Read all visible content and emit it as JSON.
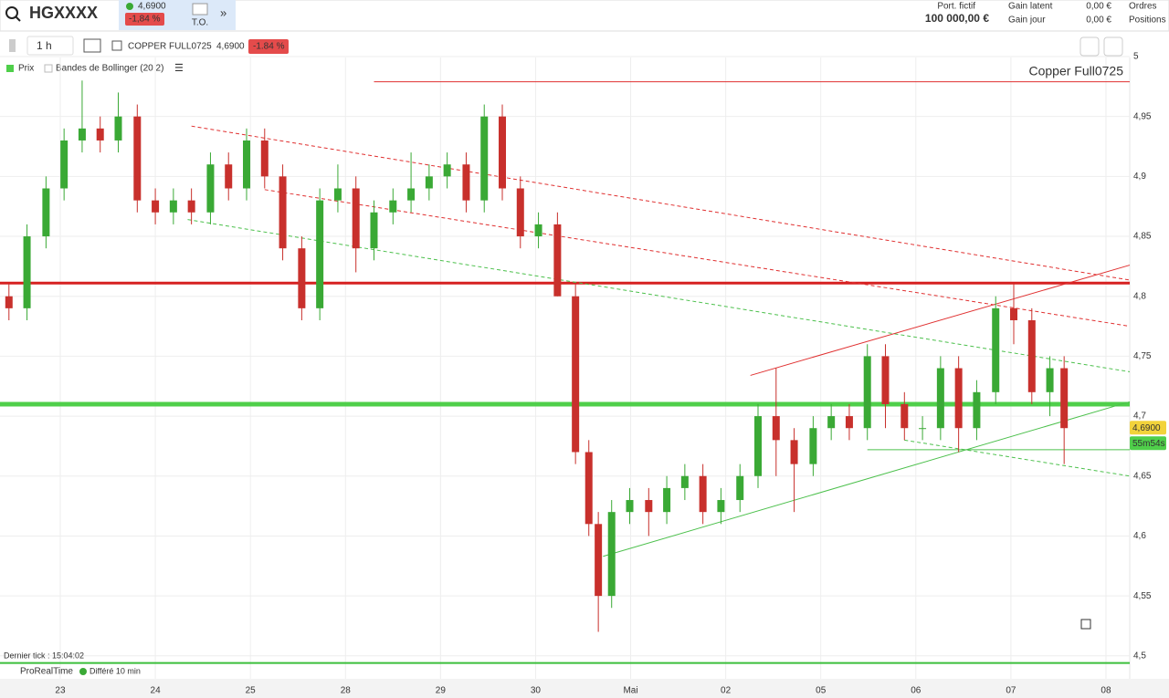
{
  "header": {
    "symbol": "HGXXXX",
    "price": "4,6900",
    "change": "-1,84 %",
    "to": "T.O.",
    "portfolio_label": "Port. fictif",
    "portfolio_value": "100 000,00 €",
    "gain_latent_label": "Gain latent",
    "gain_latent_value": "0,00 €",
    "gain_jour_label": "Gain jour",
    "gain_jour_value": "0,00 €",
    "orders": "Ordres",
    "positions": "Positions"
  },
  "toolbar": {
    "interval": "1 h",
    "instrument": "COPPER FULL0725",
    "price": "4,6900",
    "change": "-1.84 %"
  },
  "legend": {
    "items": [
      "Prix",
      "Bandes de Bollinger (20 2)"
    ]
  },
  "footer": {
    "last_tick": "Dernier tick : 15:04:02",
    "brand": "ProRealTime",
    "delay": "Différé 10 min"
  },
  "chart_data": {
    "type": "candlestick",
    "watermark": "Copper Full0725",
    "up_color": "#3aa935",
    "down_color": "#c8302c",
    "grid": true,
    "x": [
      -0.54,
      -0.35,
      -0.15,
      0.04,
      0.23,
      0.42,
      0.61,
      0.81,
      1.0,
      1.19,
      1.38,
      1.58,
      1.77,
      1.96,
      2.15,
      2.34,
      2.54,
      2.73,
      2.92,
      3.11,
      3.3,
      3.5,
      3.69,
      3.88,
      4.07,
      4.27,
      4.46,
      4.65,
      4.84,
      5.03,
      5.23,
      5.42,
      5.56,
      5.66,
      5.8,
      5.99,
      6.19,
      6.38,
      6.57,
      6.76,
      6.95,
      7.15,
      7.34,
      7.53,
      7.72,
      7.92,
      8.11,
      8.3,
      8.49,
      8.68,
      8.88,
      9.07,
      9.26,
      9.45,
      9.64,
      9.84,
      10.03,
      10.22,
      10.41,
      10.56
    ],
    "open": [
      4.8,
      4.79,
      4.85,
      4.89,
      4.93,
      4.94,
      4.93,
      4.95,
      4.88,
      4.87,
      4.88,
      4.87,
      4.91,
      4.89,
      4.93,
      4.9,
      4.84,
      4.79,
      4.88,
      4.89,
      4.84,
      4.87,
      4.88,
      4.89,
      4.9,
      4.91,
      4.88,
      4.95,
      4.89,
      4.85,
      4.86,
      4.8,
      4.67,
      4.61,
      4.55,
      4.62,
      4.63,
      4.62,
      4.64,
      4.65,
      4.62,
      4.63,
      4.65,
      4.7,
      4.68,
      4.66,
      4.69,
      4.7,
      4.69,
      4.75,
      4.71,
      4.69,
      4.69,
      4.74,
      4.69,
      4.72,
      4.79,
      4.78,
      4.72,
      4.74
    ],
    "high": [
      4.81,
      4.86,
      4.9,
      4.94,
      4.98,
      4.95,
      4.97,
      4.96,
      4.89,
      4.89,
      4.89,
      4.92,
      4.92,
      4.94,
      4.94,
      4.91,
      4.85,
      4.89,
      4.91,
      4.9,
      4.88,
      4.89,
      4.92,
      4.91,
      4.92,
      4.92,
      4.96,
      4.96,
      4.9,
      4.87,
      4.87,
      4.81,
      4.68,
      4.62,
      4.63,
      4.64,
      4.64,
      4.65,
      4.66,
      4.66,
      4.64,
      4.66,
      4.71,
      4.74,
      4.69,
      4.7,
      4.71,
      4.71,
      4.76,
      4.76,
      4.72,
      4.7,
      4.75,
      4.75,
      4.73,
      4.8,
      4.81,
      4.79,
      4.75,
      4.75
    ],
    "low": [
      4.78,
      4.78,
      4.84,
      4.88,
      4.92,
      4.92,
      4.92,
      4.87,
      4.86,
      4.86,
      4.86,
      4.86,
      4.88,
      4.88,
      4.89,
      4.83,
      4.78,
      4.78,
      4.87,
      4.82,
      4.83,
      4.86,
      4.87,
      4.88,
      4.89,
      4.87,
      4.87,
      4.88,
      4.84,
      4.84,
      4.8,
      4.66,
      4.6,
      4.52,
      4.54,
      4.61,
      4.6,
      4.61,
      4.63,
      4.61,
      4.61,
      4.62,
      4.64,
      4.65,
      4.62,
      4.65,
      4.68,
      4.68,
      4.68,
      4.69,
      4.68,
      4.68,
      4.68,
      4.67,
      4.68,
      4.71,
      4.76,
      4.71,
      4.7,
      4.66
    ],
    "close": [
      4.79,
      4.85,
      4.89,
      4.93,
      4.94,
      4.93,
      4.95,
      4.88,
      4.87,
      4.88,
      4.87,
      4.91,
      4.89,
      4.93,
      4.9,
      4.84,
      4.79,
      4.88,
      4.89,
      4.84,
      4.87,
      4.88,
      4.89,
      4.9,
      4.91,
      4.88,
      4.95,
      4.89,
      4.85,
      4.86,
      4.8,
      4.67,
      4.61,
      4.55,
      4.62,
      4.63,
      4.62,
      4.64,
      4.65,
      4.62,
      4.63,
      4.65,
      4.7,
      4.68,
      4.66,
      4.69,
      4.7,
      4.69,
      4.75,
      4.71,
      4.69,
      4.69,
      4.74,
      4.69,
      4.72,
      4.79,
      4.78,
      4.72,
      4.74,
      4.69
    ],
    "xlim": [
      -0.634,
      11.25
    ],
    "xticks": [
      {
        "value": 0,
        "label": "23"
      },
      {
        "value": 1,
        "label": "24"
      },
      {
        "value": 2,
        "label": "25"
      },
      {
        "value": 3,
        "label": "28"
      },
      {
        "value": 4,
        "label": "29"
      },
      {
        "value": 5,
        "label": "30"
      },
      {
        "value": 6,
        "label": "Mai"
      },
      {
        "value": 7,
        "label": "02"
      },
      {
        "value": 8,
        "label": "05"
      },
      {
        "value": 9,
        "label": "06"
      },
      {
        "value": 10,
        "label": "07"
      },
      {
        "value": 11,
        "label": "08"
      }
    ],
    "ylim": [
      4.493,
      5.0
    ],
    "yticks": [
      {
        "value": 4.5,
        "label": "4,5"
      },
      {
        "value": 4.55,
        "label": "4,55"
      },
      {
        "value": 4.6,
        "label": "4,6"
      },
      {
        "value": 4.65,
        "label": "4,65"
      },
      {
        "value": 4.7,
        "label": "4,7"
      },
      {
        "value": 4.75,
        "label": "4,75"
      },
      {
        "value": 4.8,
        "label": "4,8"
      },
      {
        "value": 4.85,
        "label": "4,85"
      },
      {
        "value": 4.9,
        "label": "4,9"
      },
      {
        "value": 4.95,
        "label": "4,95"
      },
      5
    ],
    "levels": [
      {
        "value": 4.811,
        "color": "#d62020",
        "width": 3
      },
      {
        "value": 4.71,
        "color": "#4fcf4a",
        "width": 5
      },
      {
        "value": 4.494,
        "color": "#3bbf3b",
        "width": 2
      }
    ],
    "lines": [
      {
        "color": "#e03030",
        "dashed": false,
        "x": [
          3.3,
          11.25
        ],
        "y": [
          4.979,
          4.979
        ]
      },
      {
        "color": "#e03030",
        "dashed": true,
        "x": [
          1.38,
          11.25
        ],
        "y": [
          4.942,
          4.8135
        ]
      },
      {
        "color": "#e03030",
        "dashed": true,
        "x": [
          2.15,
          11.25
        ],
        "y": [
          4.889,
          4.775
        ]
      },
      {
        "color": "#4cc04c",
        "dashed": true,
        "x": [
          1.34,
          11.25
        ],
        "y": [
          4.864,
          4.737
        ]
      },
      {
        "color": "#4cc04c",
        "dashed": true,
        "x": [
          8.88,
          11.25
        ],
        "y": [
          4.68,
          4.65
        ]
      },
      {
        "color": "#e03030",
        "dashed": false,
        "x": [
          7.26,
          11.25
        ],
        "y": [
          4.734,
          4.826
        ]
      },
      {
        "color": "#4cc04c",
        "dashed": false,
        "x": [
          5.71,
          11.25
        ],
        "y": [
          4.583,
          4.712
        ]
      },
      {
        "color": "#4cc04c",
        "dashed": false,
        "x": [
          8.49,
          11.25
        ],
        "y": [
          4.672,
          4.672
        ]
      }
    ],
    "price_label": {
      "value": 4.69,
      "label": "4,6900"
    },
    "timer": "55m54s"
  }
}
